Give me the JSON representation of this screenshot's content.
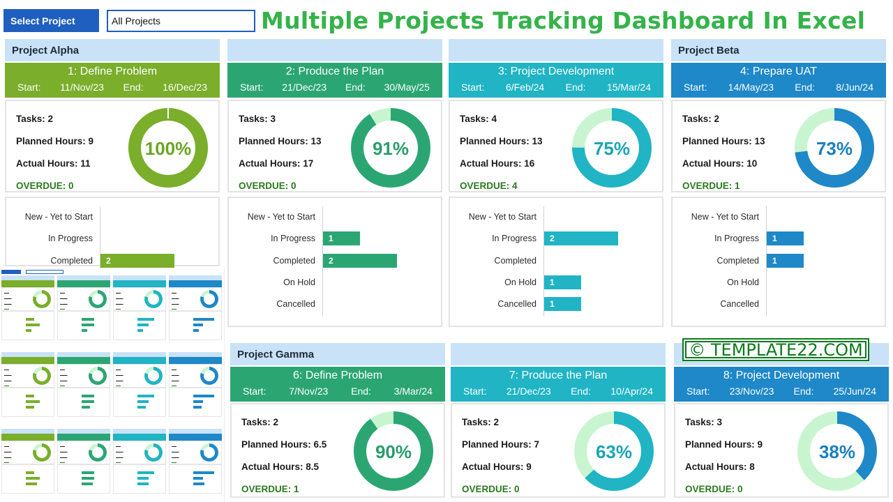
{
  "header": {
    "select_label": "Select Project",
    "select_value": "All Projects",
    "title": "Multiple Projects Tracking Dashboard In Excel"
  },
  "watermark": "© TEMPLATE22.COM",
  "labels": {
    "start": "Start:",
    "end": "End:",
    "tasks": "Tasks:",
    "planned": "Planned Hours:",
    "actual": "Actual Hours:",
    "overdue": "OVERDUE:"
  },
  "status_categories": [
    "New - Yet to Start",
    "In Progress",
    "Completed",
    "On Hold",
    "Cancelled"
  ],
  "projects": [
    {
      "name": "Project Alpha"
    },
    {
      "name": "Project Beta"
    },
    {
      "name": "Project Gamma"
    }
  ],
  "phases": [
    {
      "title": "1: Define Problem",
      "start": "11/Nov/23",
      "end": "16/Dec/23",
      "tasks": "2",
      "planned": "9",
      "actual": "11",
      "overdue": "0",
      "percent": 100,
      "percent_label": "100%",
      "color": "#7aae2b",
      "light": "#cfe9a9",
      "text_color": "#6aa524",
      "statuses": [
        0,
        0,
        2,
        0,
        0
      ],
      "visible_statuses": 3
    },
    {
      "title": "2: Produce the Plan",
      "start": "21/Dec/23",
      "end": "30/May/25",
      "tasks": "3",
      "planned": "13",
      "actual": "17",
      "overdue": "0",
      "percent": 91,
      "percent_label": "91%",
      "color": "#2ba673",
      "light": "#c8f5cf",
      "text_color": "#2a9d6c",
      "statuses": [
        0,
        1,
        2,
        0,
        0
      ],
      "visible_statuses": 5
    },
    {
      "title": "3: Project Development",
      "start": "6/Feb/24",
      "end": "15/Mar/24",
      "tasks": "4",
      "planned": "13",
      "actual": "16",
      "overdue": "4",
      "percent": 75,
      "percent_label": "75%",
      "color": "#20b4c4",
      "light": "#c8f5cf",
      "text_color": "#1aa5b6",
      "statuses": [
        0,
        2,
        0,
        1,
        1
      ],
      "visible_statuses": 5
    },
    {
      "title": "4: Prepare UAT",
      "start": "14/May/23",
      "end": "8/Jun/24",
      "tasks": "2",
      "planned": "13",
      "actual": "10",
      "overdue": "1",
      "percent": 73,
      "percent_label": "73%",
      "color": "#1e88c8",
      "light": "#c8f5cf",
      "text_color": "#1b7fbf",
      "statuses": [
        0,
        1,
        1,
        0,
        0
      ],
      "visible_statuses": 5
    },
    {
      "title": "6: Define Problem",
      "start": "7/Nov/23",
      "end": "3/Mar/24",
      "tasks": "2",
      "planned": "6.5",
      "actual": "8.5",
      "overdue": "1",
      "percent": 90,
      "percent_label": "90%",
      "color": "#2ba673",
      "light": "#c8f5cf",
      "text_color": "#2a9d6c"
    },
    {
      "title": "7: Produce the Plan",
      "start": "21/Dec/23",
      "end": "10/Apr/24",
      "tasks": "2",
      "planned": "7",
      "actual": "9",
      "overdue": "0",
      "percent": 63,
      "percent_label": "63%",
      "color": "#20b4c4",
      "light": "#c8f5cf",
      "text_color": "#1aa5b6"
    },
    {
      "title": "8: Project Development",
      "start": "23/Nov/23",
      "end": "25/Jun/24",
      "tasks": "3",
      "planned": "9",
      "actual": "8",
      "overdue": "0",
      "percent": 38,
      "percent_label": "38%",
      "color": "#1e88c8",
      "light": "#c8f5cf",
      "text_color": "#1b7fbf"
    }
  ]
}
